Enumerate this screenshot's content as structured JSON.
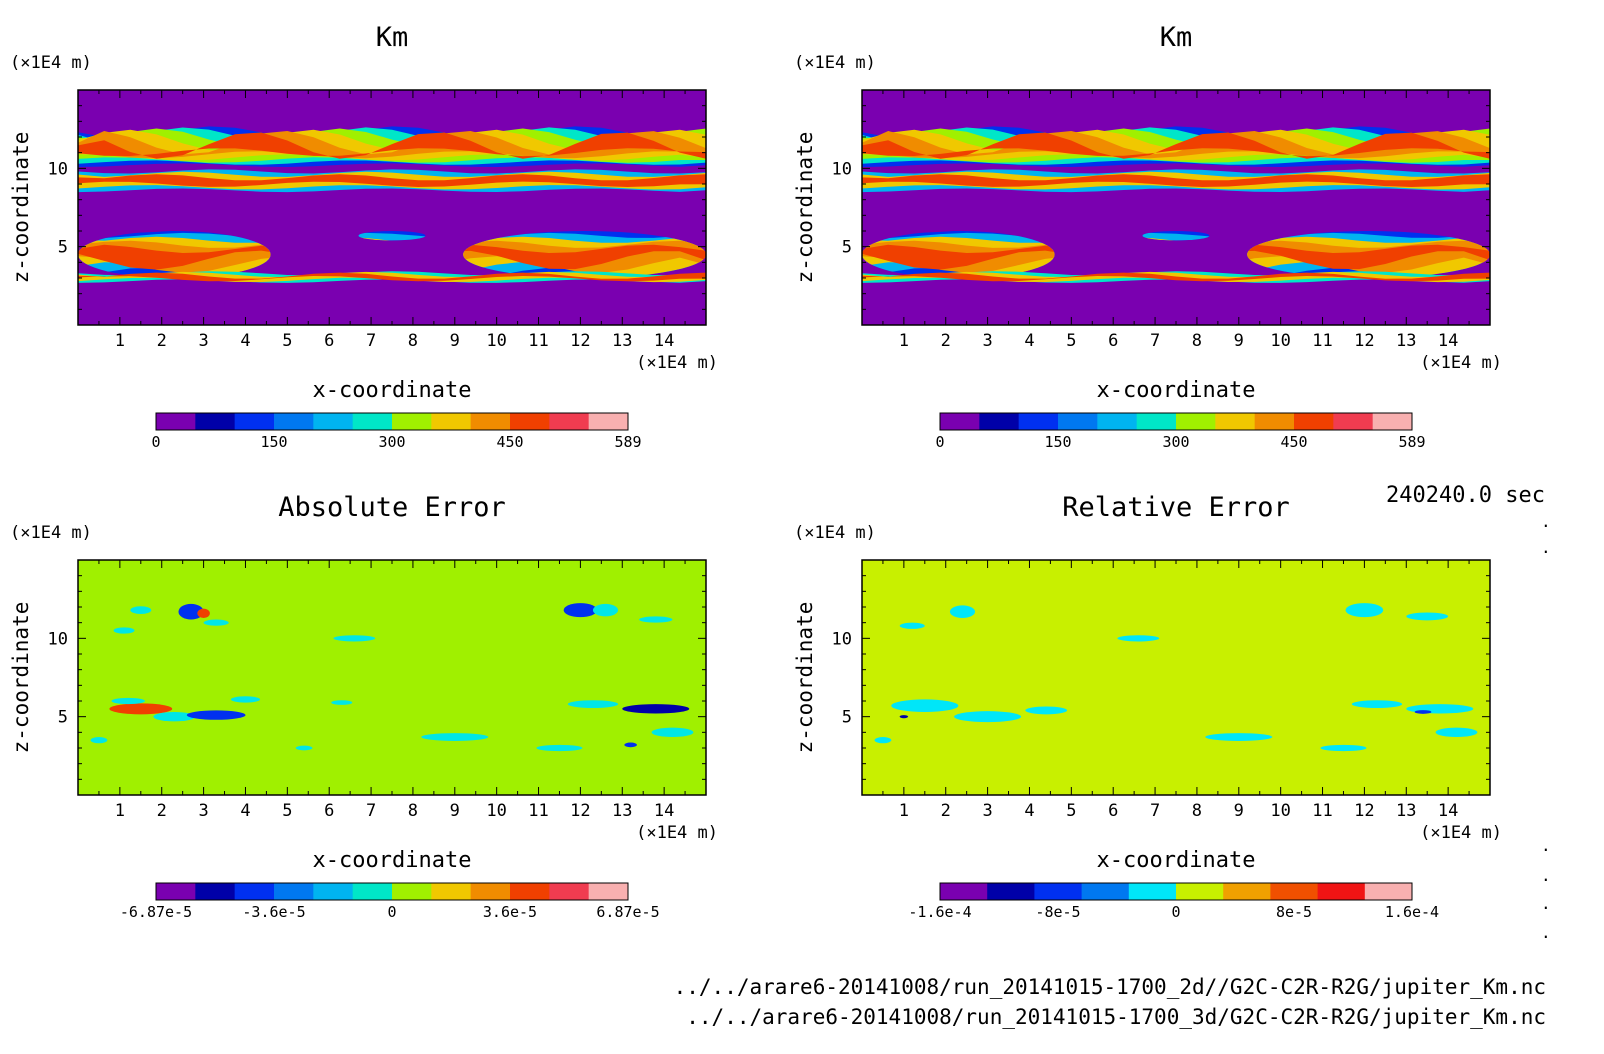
{
  "figure": {
    "time_label": "240240.0 sec",
    "files": [
      "../../arare6-20141008/run_20141015-1700_2d//G2C-C2R-R2G/jupiter_Km.nc",
      "../../arare6-20141008/run_20141015-1700_3d/G2C-C2R-R2G/jupiter_Km.nc"
    ],
    "side_marks": [
      ".",
      ".",
      ".",
      ".",
      ".",
      "."
    ]
  },
  "chart_data": [
    {
      "id": "km-2d",
      "type": "heatmap",
      "title": "Km",
      "xlabel": "x-coordinate",
      "ylabel": "z-coordinate",
      "x_unit": "(×1E4 m)",
      "y_unit": "(×1E4 m)",
      "xlim": [
        0,
        15
      ],
      "ylim": [
        0,
        15
      ],
      "xticks": [
        1,
        2,
        3,
        4,
        5,
        6,
        7,
        8,
        9,
        10,
        11,
        12,
        13,
        14
      ],
      "yticks": [
        5,
        10
      ],
      "background": "#7a00b0",
      "colorbar": {
        "range": [
          0,
          589
        ],
        "labels": [
          "0",
          "150",
          "300",
          "450",
          "589"
        ],
        "colors": [
          "#7a00b0",
          "#0000a8",
          "#0030f0",
          "#0078f0",
          "#00b4f0",
          "#00e6c8",
          "#a0f000",
          "#f0c800",
          "#f08c00",
          "#f04000",
          "#f03c50",
          "#f8b0b0"
        ]
      },
      "layers": [
        {
          "name": "upper-cloud",
          "z": [
            10.2,
            12.3
          ],
          "x": [
            0,
            15
          ],
          "colors": [
            "#0030f0",
            "#00e6c8",
            "#a0f000",
            "#f0c800",
            "#f08c00",
            "#f04000"
          ]
        },
        {
          "name": "upper-band",
          "z": [
            8.6,
            9.8
          ],
          "x": [
            0,
            15
          ],
          "colors": [
            "#00b4f0",
            "#f0c800",
            "#f04000"
          ]
        },
        {
          "name": "middle-plumes",
          "z": [
            3.0,
            6.0
          ],
          "x": [
            0,
            15
          ],
          "colors": [
            "#0030f0",
            "#00b4f0",
            "#f0c800",
            "#f08c00",
            "#f04000"
          ]
        },
        {
          "name": "lower-band",
          "z": [
            2.8,
            3.3
          ],
          "x": [
            0,
            15
          ],
          "colors": [
            "#00e6c8",
            "#f0c800",
            "#f04000"
          ]
        }
      ]
    },
    {
      "id": "km-3d",
      "type": "heatmap",
      "title": "Km",
      "xlabel": "x-coordinate",
      "ylabel": "z-coordinate",
      "x_unit": "(×1E4 m)",
      "y_unit": "(×1E4 m)",
      "xlim": [
        0,
        15
      ],
      "ylim": [
        0,
        15
      ],
      "xticks": [
        1,
        2,
        3,
        4,
        5,
        6,
        7,
        8,
        9,
        10,
        11,
        12,
        13,
        14
      ],
      "yticks": [
        5,
        10
      ],
      "background": "#7a00b0",
      "colorbar": {
        "range": [
          0,
          589
        ],
        "labels": [
          "0",
          "150",
          "300",
          "450",
          "589"
        ],
        "colors": [
          "#7a00b0",
          "#0000a8",
          "#0030f0",
          "#0078f0",
          "#00b4f0",
          "#00e6c8",
          "#a0f000",
          "#f0c800",
          "#f08c00",
          "#f04000",
          "#f03c50",
          "#f8b0b0"
        ]
      },
      "layers": [
        {
          "name": "upper-cloud",
          "z": [
            10.2,
            12.3
          ],
          "x": [
            0,
            15
          ],
          "colors": [
            "#0030f0",
            "#00e6c8",
            "#a0f000",
            "#f0c800",
            "#f08c00",
            "#f04000"
          ]
        },
        {
          "name": "upper-band",
          "z": [
            8.6,
            9.8
          ],
          "x": [
            0,
            15
          ],
          "colors": [
            "#00b4f0",
            "#f0c800",
            "#f04000"
          ]
        },
        {
          "name": "middle-plumes",
          "z": [
            3.0,
            6.0
          ],
          "x": [
            0,
            15
          ],
          "colors": [
            "#0030f0",
            "#00b4f0",
            "#f0c800",
            "#f08c00",
            "#f04000"
          ]
        },
        {
          "name": "lower-band",
          "z": [
            2.8,
            3.3
          ],
          "x": [
            0,
            15
          ],
          "colors": [
            "#00e6c8",
            "#f0c800",
            "#f04000"
          ]
        }
      ]
    },
    {
      "id": "absolute-error",
      "type": "heatmap",
      "title": "Absolute Error",
      "xlabel": "x-coordinate",
      "ylabel": "z-coordinate",
      "x_unit": "(×1E4 m)",
      "y_unit": "(×1E4 m)",
      "xlim": [
        0,
        15
      ],
      "ylim": [
        0,
        15
      ],
      "xticks": [
        1,
        2,
        3,
        4,
        5,
        6,
        7,
        8,
        9,
        10,
        11,
        12,
        13,
        14
      ],
      "yticks": [
        5,
        10
      ],
      "background": "#a0f000",
      "colorbar": {
        "range": [
          -6.87e-05,
          6.87e-05
        ],
        "labels": [
          "-6.87e-5",
          "-3.6e-5",
          "0",
          "3.6e-5",
          "6.87e-5"
        ],
        "colors": [
          "#7a00b0",
          "#0000a8",
          "#0030f0",
          "#0078f0",
          "#00b4f0",
          "#00e6c8",
          "#a0f000",
          "#f0c800",
          "#f08c00",
          "#f04000",
          "#f03c50",
          "#f8b0b0"
        ]
      },
      "blobs": [
        {
          "x": 1.5,
          "z": 11.8,
          "w": 0.5,
          "h": 0.25,
          "color": "#00e6e6"
        },
        {
          "x": 2.7,
          "z": 11.7,
          "w": 0.6,
          "h": 0.5,
          "color": "#0030f0"
        },
        {
          "x": 3.0,
          "z": 11.6,
          "w": 0.3,
          "h": 0.3,
          "color": "#f04000"
        },
        {
          "x": 3.3,
          "z": 11.0,
          "w": 0.6,
          "h": 0.2,
          "color": "#00e6e6"
        },
        {
          "x": 1.1,
          "z": 10.5,
          "w": 0.5,
          "h": 0.2,
          "color": "#00e6e6"
        },
        {
          "x": 6.6,
          "z": 10.0,
          "w": 1.0,
          "h": 0.2,
          "color": "#00e6e6"
        },
        {
          "x": 12.0,
          "z": 11.8,
          "w": 0.8,
          "h": 0.45,
          "color": "#0030f0"
        },
        {
          "x": 12.6,
          "z": 11.8,
          "w": 0.6,
          "h": 0.4,
          "color": "#00e6e6"
        },
        {
          "x": 13.8,
          "z": 11.2,
          "w": 0.8,
          "h": 0.2,
          "color": "#00e6e6"
        },
        {
          "x": 1.5,
          "z": 5.5,
          "w": 1.5,
          "h": 0.35,
          "color": "#f04000"
        },
        {
          "x": 2.3,
          "z": 5.0,
          "w": 1.0,
          "h": 0.3,
          "color": "#00e6e6"
        },
        {
          "x": 3.3,
          "z": 5.1,
          "w": 1.4,
          "h": 0.3,
          "color": "#0030f0"
        },
        {
          "x": 1.2,
          "z": 6.0,
          "w": 0.8,
          "h": 0.2,
          "color": "#00e6e6"
        },
        {
          "x": 4.0,
          "z": 6.1,
          "w": 0.7,
          "h": 0.2,
          "color": "#00e6e6"
        },
        {
          "x": 9.0,
          "z": 3.7,
          "w": 1.6,
          "h": 0.25,
          "color": "#00e6e6"
        },
        {
          "x": 11.5,
          "z": 3.0,
          "w": 1.1,
          "h": 0.2,
          "color": "#00e6e6"
        },
        {
          "x": 12.3,
          "z": 5.8,
          "w": 1.2,
          "h": 0.25,
          "color": "#00e6e6"
        },
        {
          "x": 13.8,
          "z": 5.5,
          "w": 1.6,
          "h": 0.3,
          "color": "#0000a8"
        },
        {
          "x": 14.2,
          "z": 4.0,
          "w": 1.0,
          "h": 0.3,
          "color": "#00e6e6"
        },
        {
          "x": 13.2,
          "z": 3.2,
          "w": 0.3,
          "h": 0.15,
          "color": "#0030f0"
        },
        {
          "x": 5.4,
          "z": 3.0,
          "w": 0.4,
          "h": 0.15,
          "color": "#00e6e6"
        },
        {
          "x": 0.5,
          "z": 3.5,
          "w": 0.4,
          "h": 0.2,
          "color": "#00e6e6"
        },
        {
          "x": 6.3,
          "z": 5.9,
          "w": 0.5,
          "h": 0.15,
          "color": "#00e6e6"
        }
      ]
    },
    {
      "id": "relative-error",
      "type": "heatmap",
      "title": "Relative Error",
      "xlabel": "x-coordinate",
      "ylabel": "z-coordinate",
      "x_unit": "(×1E4 m)",
      "y_unit": "(×1E4 m)",
      "xlim": [
        0,
        15
      ],
      "ylim": [
        0,
        15
      ],
      "xticks": [
        1,
        2,
        3,
        4,
        5,
        6,
        7,
        8,
        9,
        10,
        11,
        12,
        13,
        14
      ],
      "yticks": [
        5,
        10
      ],
      "background": "#c8f000",
      "colorbar": {
        "range": [
          -0.00016,
          0.00016
        ],
        "labels": [
          "-1.6e-4",
          "-8e-5",
          "0",
          "8e-5",
          "1.6e-4"
        ],
        "colors": [
          "#7a00b0",
          "#0000a8",
          "#0030f0",
          "#0078f0",
          "#00e6f8",
          "#c8f000",
          "#f0a000",
          "#f05000",
          "#f01414",
          "#f8b0b0"
        ]
      },
      "blobs": [
        {
          "x": 2.4,
          "z": 11.7,
          "w": 0.6,
          "h": 0.4,
          "color": "#00e6f8"
        },
        {
          "x": 1.2,
          "z": 10.8,
          "w": 0.6,
          "h": 0.2,
          "color": "#00e6f8"
        },
        {
          "x": 6.6,
          "z": 10.0,
          "w": 1.0,
          "h": 0.2,
          "color": "#00e6f8"
        },
        {
          "x": 12.0,
          "z": 11.8,
          "w": 0.9,
          "h": 0.45,
          "color": "#00e6f8"
        },
        {
          "x": 13.5,
          "z": 11.4,
          "w": 1.0,
          "h": 0.25,
          "color": "#00e6f8"
        },
        {
          "x": 1.5,
          "z": 5.7,
          "w": 1.6,
          "h": 0.4,
          "color": "#00e6f8"
        },
        {
          "x": 3.0,
          "z": 5.0,
          "w": 1.6,
          "h": 0.35,
          "color": "#00e6f8"
        },
        {
          "x": 4.4,
          "z": 5.4,
          "w": 1.0,
          "h": 0.25,
          "color": "#00e6f8"
        },
        {
          "x": 9.0,
          "z": 3.7,
          "w": 1.6,
          "h": 0.25,
          "color": "#00e6f8"
        },
        {
          "x": 11.5,
          "z": 3.0,
          "w": 1.1,
          "h": 0.2,
          "color": "#00e6f8"
        },
        {
          "x": 12.3,
          "z": 5.8,
          "w": 1.2,
          "h": 0.25,
          "color": "#00e6f8"
        },
        {
          "x": 13.8,
          "z": 5.5,
          "w": 1.6,
          "h": 0.3,
          "color": "#00e6f8"
        },
        {
          "x": 14.2,
          "z": 4.0,
          "w": 1.0,
          "h": 0.3,
          "color": "#00e6f8"
        },
        {
          "x": 0.5,
          "z": 3.5,
          "w": 0.4,
          "h": 0.2,
          "color": "#00e6f8"
        },
        {
          "x": 13.4,
          "z": 5.3,
          "w": 0.4,
          "h": 0.12,
          "color": "#0030f0"
        },
        {
          "x": 1.0,
          "z": 5.0,
          "w": 0.2,
          "h": 0.1,
          "color": "#0000a8"
        }
      ]
    }
  ]
}
